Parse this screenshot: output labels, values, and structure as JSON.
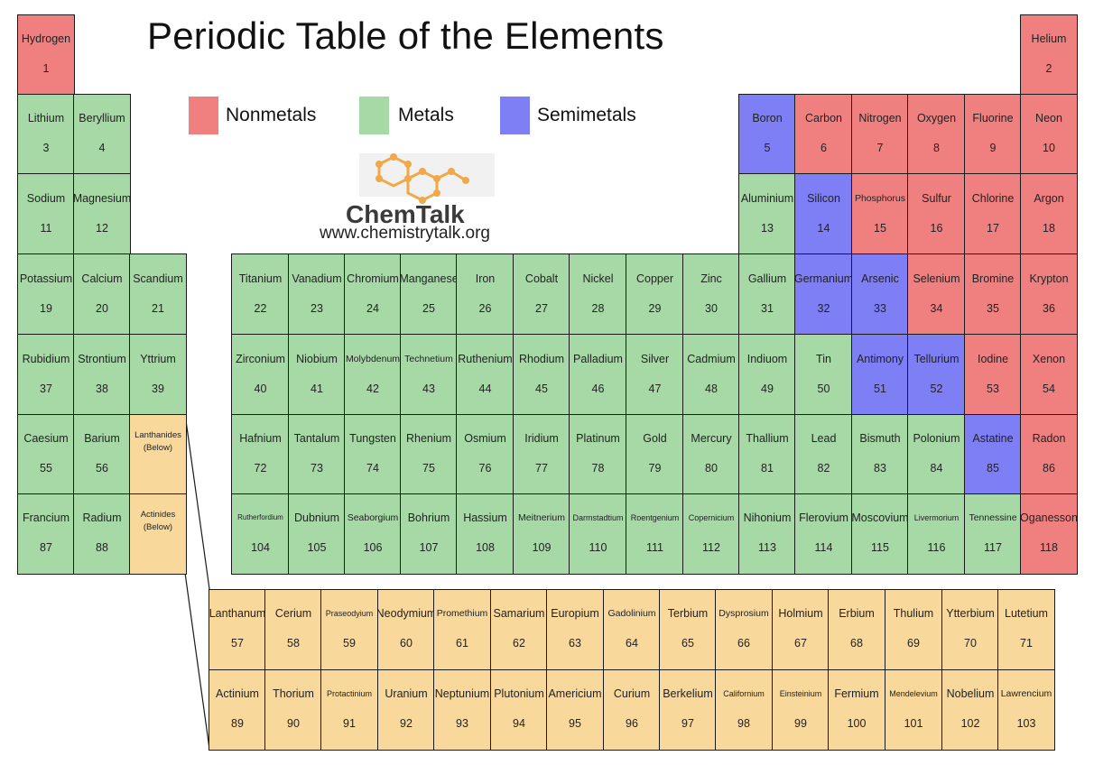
{
  "title": "Periodic Table of the Elements",
  "legend": [
    {
      "label": "Nonmetals",
      "color": "#f08080"
    },
    {
      "label": "Metals",
      "color": "#a7d9a7"
    },
    {
      "label": "Semimetals",
      "color": "#7f7ff5"
    }
  ],
  "logo": {
    "name": "ChemTalk",
    "url": "www.chemistrytalk.org",
    "icon": "molecule-hexagon-logo"
  },
  "colors": {
    "N": "#f08080",
    "M": "#a7d9a7",
    "S": "#7f7ff5",
    "F": "#f9d89c"
  },
  "main_rows": [
    [
      [
        "Hydrogen",
        "1",
        "N"
      ],
      null,
      null,
      null,
      null,
      null,
      null,
      null,
      null,
      null,
      null,
      null,
      null,
      null,
      null,
      null,
      null,
      null,
      null,
      [
        "Helium",
        "2",
        "N"
      ]
    ],
    [
      [
        "Lithium",
        "3",
        "M"
      ],
      [
        "Beryllium",
        "4",
        "M"
      ],
      null,
      null,
      null,
      null,
      null,
      null,
      null,
      null,
      null,
      null,
      null,
      [
        "Boron",
        "5",
        "S"
      ],
      [
        "Carbon",
        "6",
        "N"
      ],
      [
        "Nitrogen",
        "7",
        "N"
      ],
      [
        "Oxygen",
        "8",
        "N"
      ],
      [
        "Fluorine",
        "9",
        "N"
      ],
      [
        "Neon",
        "10",
        "N"
      ]
    ],
    [
      [
        "Sodium",
        "11",
        "M"
      ],
      [
        "Magnesium",
        "12",
        "M"
      ],
      null,
      null,
      null,
      null,
      null,
      null,
      null,
      null,
      null,
      null,
      null,
      [
        "Aluminium",
        "13",
        "M"
      ],
      [
        "Silicon",
        "14",
        "S"
      ],
      [
        "Phosphorus",
        "15",
        "N"
      ],
      [
        "Sulfur",
        "16",
        "N"
      ],
      [
        "Chlorine",
        "17",
        "N"
      ],
      [
        "Argon",
        "18",
        "N"
      ]
    ],
    [
      [
        "Potassium",
        "19",
        "M"
      ],
      [
        "Calcium",
        "20",
        "M"
      ],
      [
        "Scandium",
        "21",
        "M"
      ],
      [
        "Titanium",
        "22",
        "M"
      ],
      [
        "Vanadium",
        "23",
        "M"
      ],
      [
        "Chromium",
        "24",
        "M"
      ],
      [
        "Manganese",
        "25",
        "M"
      ],
      [
        "Iron",
        "26",
        "M"
      ],
      [
        "Cobalt",
        "27",
        "M"
      ],
      [
        "Nickel",
        "28",
        "M"
      ],
      [
        "Copper",
        "29",
        "M"
      ],
      [
        "Zinc",
        "30",
        "M"
      ],
      [
        "Gallium",
        "31",
        "M"
      ],
      [
        "Germanium",
        "32",
        "S"
      ],
      [
        "Arsenic",
        "33",
        "S"
      ],
      [
        "Selenium",
        "34",
        "N"
      ],
      [
        "Bromine",
        "35",
        "N"
      ],
      [
        "Krypton",
        "36",
        "N"
      ]
    ],
    [
      [
        "Rubidium",
        "37",
        "M"
      ],
      [
        "Strontium",
        "38",
        "M"
      ],
      [
        "Yttrium",
        "39",
        "M"
      ],
      [
        "Zirconium",
        "40",
        "M"
      ],
      [
        "Niobium",
        "41",
        "M"
      ],
      [
        "Molybdenum",
        "42",
        "M"
      ],
      [
        "Technetium",
        "43",
        "M"
      ],
      [
        "Ruthenium",
        "44",
        "M"
      ],
      [
        "Rhodium",
        "45",
        "M"
      ],
      [
        "Palladium",
        "46",
        "M"
      ],
      [
        "Silver",
        "47",
        "M"
      ],
      [
        "Cadmium",
        "48",
        "M"
      ],
      [
        "Indiuom",
        "49",
        "M"
      ],
      [
        "Tin",
        "50",
        "M"
      ],
      [
        "Antimony",
        "51",
        "S"
      ],
      [
        "Tellurium",
        "52",
        "S"
      ],
      [
        "Iodine",
        "53",
        "N"
      ],
      [
        "Xenon",
        "54",
        "N"
      ]
    ],
    [
      [
        "Caesium",
        "55",
        "M"
      ],
      [
        "Barium",
        "56",
        "M"
      ],
      [
        "Lanthanides\n(Below)",
        "",
        "F"
      ],
      [
        "Hafnium",
        "72",
        "M"
      ],
      [
        "Tantalum",
        "73",
        "M"
      ],
      [
        "Tungsten",
        "74",
        "M"
      ],
      [
        "Rhenium",
        "75",
        "M"
      ],
      [
        "Osmium",
        "76",
        "M"
      ],
      [
        "Iridium",
        "77",
        "M"
      ],
      [
        "Platinum",
        "78",
        "M"
      ],
      [
        "Gold",
        "79",
        "M"
      ],
      [
        "Mercury",
        "80",
        "M"
      ],
      [
        "Thallium",
        "81",
        "M"
      ],
      [
        "Lead",
        "82",
        "M"
      ],
      [
        "Bismuth",
        "83",
        "M"
      ],
      [
        "Polonium",
        "84",
        "M"
      ],
      [
        "Astatine",
        "85",
        "S"
      ],
      [
        "Radon",
        "86",
        "N"
      ]
    ],
    [
      [
        "Francium",
        "87",
        "M"
      ],
      [
        "Radium",
        "88",
        "M"
      ],
      [
        "Actinides\n(Below)",
        "",
        "F"
      ],
      [
        "Rutherfordium",
        "104",
        "M"
      ],
      [
        "Dubnium",
        "105",
        "M"
      ],
      [
        "Seaborgium",
        "106",
        "M"
      ],
      [
        "Bohrium",
        "107",
        "M"
      ],
      [
        "Hassium",
        "108",
        "M"
      ],
      [
        "Meitnerium",
        "109",
        "M"
      ],
      [
        "Darmstadtium",
        "110",
        "M"
      ],
      [
        "Roentgenium",
        "111",
        "M"
      ],
      [
        "Copernicium",
        "112",
        "M"
      ],
      [
        "Nihonium",
        "113",
        "M"
      ],
      [
        "Flerovium",
        "114",
        "M"
      ],
      [
        "Moscovium",
        "115",
        "M"
      ],
      [
        "Livermorium",
        "116",
        "M"
      ],
      [
        "Tennessine",
        "117",
        "M"
      ],
      [
        "Oganesson",
        "118",
        "N"
      ]
    ]
  ],
  "fblock_rows": [
    [
      [
        "Lanthanum",
        "57"
      ],
      [
        "Cerium",
        "58"
      ],
      [
        "Praseodyium",
        "59"
      ],
      [
        "Neodymium",
        "60"
      ],
      [
        "Promethium",
        "61"
      ],
      [
        "Samarium",
        "62"
      ],
      [
        "Europium",
        "63"
      ],
      [
        "Gadolinium",
        "64"
      ],
      [
        "Terbium",
        "65"
      ],
      [
        "Dysprosium",
        "66"
      ],
      [
        "Holmium",
        "67"
      ],
      [
        "Erbium",
        "68"
      ],
      [
        "Thulium",
        "69"
      ],
      [
        "Ytterbium",
        "70"
      ],
      [
        "Lutetium",
        "71"
      ]
    ],
    [
      [
        "Actinium",
        "89"
      ],
      [
        "Thorium",
        "90"
      ],
      [
        "Protactinium",
        "91"
      ],
      [
        "Uranium",
        "92"
      ],
      [
        "Neptunium",
        "93"
      ],
      [
        "Plutonium",
        "94"
      ],
      [
        "Americium",
        "95"
      ],
      [
        "Curium",
        "96"
      ],
      [
        "Berkelium",
        "97"
      ],
      [
        "Californium",
        "98"
      ],
      [
        "Einsteinium",
        "99"
      ],
      [
        "Fermium",
        "100"
      ],
      [
        "Mendelevium",
        "101"
      ],
      [
        "Nobelium",
        "102"
      ],
      [
        "Lawrencium",
        "103"
      ]
    ]
  ]
}
